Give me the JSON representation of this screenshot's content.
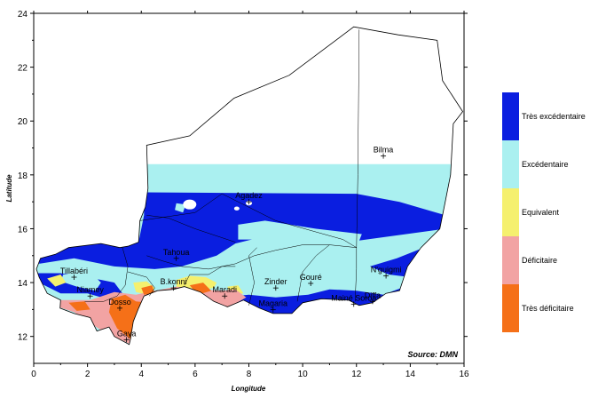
{
  "axes": {
    "x_label": "Longitude",
    "y_label": "Latitude",
    "x_range": [
      0,
      16
    ],
    "y_range": [
      11,
      24
    ],
    "x_ticks": [
      "0",
      "2",
      "4",
      "6",
      "8",
      "10",
      "12",
      "14",
      "16"
    ],
    "y_ticks": [
      "12",
      "14",
      "16",
      "18",
      "20",
      "22",
      "24"
    ]
  },
  "source": "Source: DMN",
  "colors": {
    "tres_excedentaire": "#0a1ee0",
    "excedentaire": "#aaf0f0",
    "equivalent": "#f5f06e",
    "deficitaire": "#f2a3a3",
    "tres_deficitaire": "#f57018"
  },
  "legend": [
    {
      "label": "Très excédentaire",
      "color": "#0a1ee0"
    },
    {
      "label": "Excédentaire",
      "color": "#aaf0f0"
    },
    {
      "label": "Equivalent",
      "color": "#f5f06e"
    },
    {
      "label": "Déficitaire",
      "color": "#f2a3a3"
    },
    {
      "label": "Très déficitaire",
      "color": "#f57018"
    }
  ],
  "cities": [
    {
      "name": "Bilma",
      "lon": 13.0,
      "lat": 18.7
    },
    {
      "name": "Agadez",
      "lon": 8.0,
      "lat": 17.0
    },
    {
      "name": "Tahoua",
      "lon": 5.3,
      "lat": 14.9
    },
    {
      "name": "Tillabéri",
      "lon": 1.5,
      "lat": 14.2
    },
    {
      "name": "Niamey",
      "lon": 2.1,
      "lat": 13.5
    },
    {
      "name": "B.konni",
      "lon": 5.2,
      "lat": 13.8
    },
    {
      "name": "Maradi",
      "lon": 7.1,
      "lat": 13.5
    },
    {
      "name": "Zinder",
      "lon": 9.0,
      "lat": 13.8
    },
    {
      "name": "Gouré",
      "lon": 10.3,
      "lat": 13.97
    },
    {
      "name": "N'guigmi",
      "lon": 13.1,
      "lat": 14.25
    },
    {
      "name": "Diffa",
      "lon": 12.6,
      "lat": 13.3
    },
    {
      "name": "Magaria",
      "lon": 8.9,
      "lat": 12.99
    },
    {
      "name": "Mainé Soroa",
      "lon": 11.9,
      "lat": 13.2
    },
    {
      "name": "Dosso",
      "lon": 3.2,
      "lat": 13.05
    },
    {
      "name": "Gaya",
      "lon": 3.45,
      "lat": 11.88
    }
  ]
}
